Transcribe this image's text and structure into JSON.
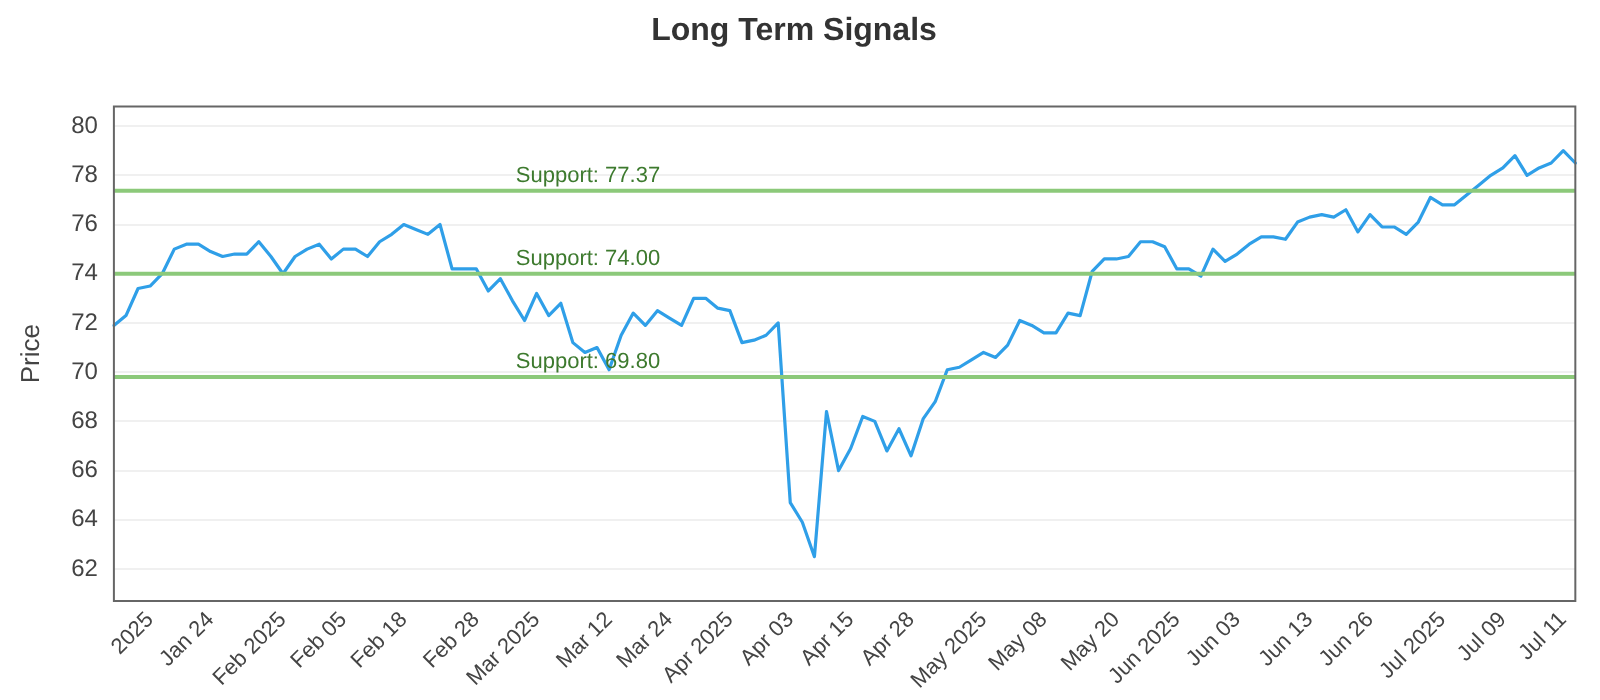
{
  "chart_data": {
    "type": "line",
    "title": "Long Term Signals",
    "ylabel": "Price",
    "categories": [
      null,
      null,
      null,
      "2025",
      null,
      null,
      null,
      null,
      "Jan 24",
      null,
      null,
      null,
      null,
      null,
      "Feb 2025",
      null,
      null,
      null,
      null,
      "Feb 05",
      null,
      null,
      null,
      null,
      "Feb 18",
      null,
      null,
      null,
      null,
      null,
      "Feb 28",
      null,
      null,
      null,
      null,
      "Mar 2025",
      null,
      null,
      null,
      null,
      null,
      "Mar 12",
      null,
      null,
      null,
      null,
      "Mar 24",
      null,
      null,
      null,
      null,
      "Apr 2025",
      null,
      null,
      null,
      null,
      "Apr 03",
      null,
      null,
      null,
      null,
      "Apr 15",
      null,
      null,
      null,
      null,
      "Apr 28",
      null,
      null,
      null,
      null,
      null,
      "May 2025",
      null,
      null,
      null,
      null,
      "May 08",
      null,
      null,
      null,
      null,
      null,
      "May 20",
      null,
      null,
      null,
      null,
      "Jun 2025",
      null,
      null,
      null,
      null,
      "Jun 03",
      null,
      null,
      null,
      null,
      null,
      "Jun 13",
      null,
      null,
      null,
      null,
      "Jun 26",
      null,
      null,
      null,
      null,
      null,
      "Jul 2025",
      null,
      null,
      null,
      null,
      "Jul 09",
      null,
      null,
      null,
      null,
      "Jul 11",
      null
    ],
    "series": [
      {
        "color": "#2f9fe8",
        "values": [
          71.9,
          72.3,
          73.4,
          73.5,
          74.0,
          75.0,
          75.2,
          75.2,
          74.9,
          74.7,
          74.8,
          74.8,
          75.3,
          74.7,
          74.0,
          74.7,
          75.0,
          75.2,
          74.6,
          75.0,
          75.0,
          74.7,
          75.3,
          75.6,
          76.0,
          75.8,
          75.6,
          76.0,
          74.2,
          74.2,
          74.2,
          73.3,
          73.8,
          72.9,
          72.1,
          73.2,
          72.3,
          72.8,
          71.2,
          70.8,
          71.0,
          70.1,
          71.5,
          72.4,
          71.9,
          72.5,
          72.2,
          71.9,
          73.0,
          73.0,
          72.6,
          72.5,
          71.2,
          71.3,
          71.5,
          72.0,
          64.7,
          63.9,
          62.5,
          68.4,
          66.0,
          66.9,
          68.2,
          68.0,
          66.8,
          67.7,
          66.6,
          68.1,
          68.8,
          70.1,
          70.2,
          70.5,
          70.8,
          70.6,
          71.1,
          72.1,
          71.9,
          71.6,
          71.6,
          72.4,
          72.3,
          74.1,
          74.6,
          74.6,
          74.7,
          75.3,
          75.3,
          75.1,
          74.2,
          74.2,
          73.9,
          75.0,
          74.5,
          74.8,
          75.2,
          75.5,
          75.5,
          75.4,
          76.1,
          76.3,
          76.4,
          76.3,
          76.6,
          75.7,
          76.4,
          75.9,
          75.9,
          75.6,
          76.1,
          77.1,
          76.8,
          76.8,
          77.2,
          77.6,
          78.0,
          78.3,
          78.8,
          78.0,
          78.3,
          78.5,
          79.0,
          78.5
        ]
      }
    ],
    "ylim": [
      60.7,
      80.8
    ],
    "yticks": [
      62,
      64,
      66,
      68,
      70,
      72,
      74,
      76,
      78,
      80
    ],
    "grid": "y",
    "legend": false,
    "marker": "none",
    "line_style": "solid",
    "ref_lines": [
      {
        "axis": "y",
        "value": 77.37,
        "label": "Support: 77.37",
        "color": "#8cc97a"
      },
      {
        "axis": "y",
        "value": 74.0,
        "label": "Support: 74.00",
        "color": "#8cc97a"
      },
      {
        "axis": "y",
        "value": 69.8,
        "label": "Support: 69.80",
        "color": "#8cc97a"
      }
    ]
  }
}
